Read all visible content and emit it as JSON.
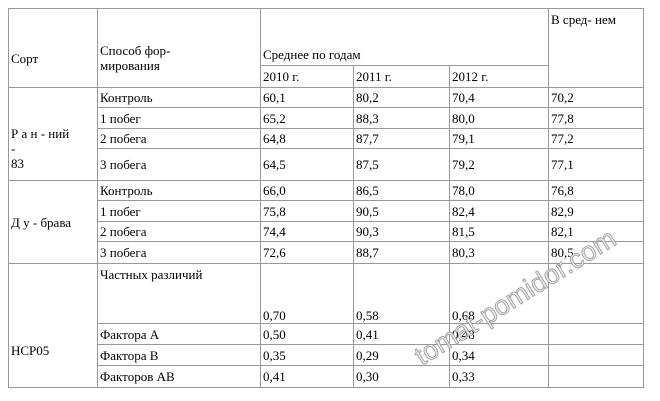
{
  "table": {
    "header": {
      "variety": "Сорт",
      "method": "Способ фор-\nмирования",
      "years_group": "Среднее по годам",
      "years": [
        "2010 г.",
        "2011 г.",
        "2012 г."
      ],
      "average": "В сред- нем"
    },
    "groups": [
      {
        "variety": "Р а н - ний\n-\n83",
        "rows": [
          [
            "Контроль",
            "60,1",
            "80,2",
            "70,4",
            "70,2"
          ],
          [
            "1 побег",
            "65,2",
            "88,3",
            "80,0",
            "77,8"
          ],
          [
            "2 побега",
            "64,8",
            "87,7",
            "79,1",
            "77,2"
          ],
          [
            "3 побега",
            "64,5",
            "87,5",
            "79,2",
            "77,1"
          ]
        ]
      },
      {
        "variety": "Д у - брава",
        "rows": [
          [
            "Контроль",
            "66,0",
            "86,5",
            "78,0",
            "76,8"
          ],
          [
            "1 побег",
            "75,8",
            "90,5",
            "82,4",
            "82,9"
          ],
          [
            "2 побега",
            "74,4",
            "90,3",
            "81,5",
            "82,1"
          ],
          [
            "3 побега",
            "72,6",
            "88,7",
            "80,3",
            "80,5"
          ]
        ]
      }
    ],
    "lsd": {
      "label": "НСР05",
      "rows": [
        [
          "Частных различий",
          "0,70",
          "0,58",
          "0,68"
        ],
        [
          "Фактора А",
          "0,50",
          "0,41",
          "0,48"
        ],
        [
          "Фактора В",
          "0,35",
          "0,29",
          "0,34"
        ],
        [
          "Факторов АВ",
          "0,41",
          "0,30",
          "0,33"
        ]
      ]
    }
  },
  "watermark": "tomat-pomidor.com"
}
